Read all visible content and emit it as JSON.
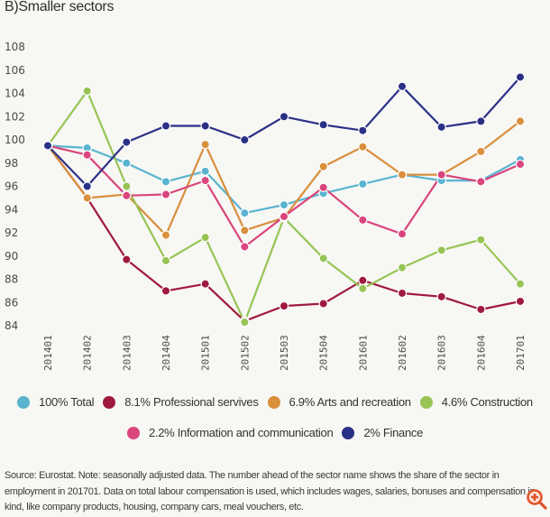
{
  "page": {
    "title": "B)Smaller sectors",
    "source_note": "Source: Eurostat. Note: seasonally adjusted data. The number ahead of the sector name shows the share of the sector in employment in 201701.     Data on total labour compensation is used, which includes wages, salaries, bonuses and compensation in kind, like company products, housing, company cars, meal vouchers, etc.",
    "zoom_icon": "zoom-in-icon"
  },
  "chart_data": {
    "type": "line",
    "title": "B)Smaller sectors",
    "xlabel": "",
    "ylabel": "",
    "categories": [
      "201401",
      "201402",
      "201403",
      "201404",
      "201501",
      "201502",
      "201503",
      "201504",
      "201601",
      "201602",
      "201603",
      "201604",
      "201701"
    ],
    "ylim": [
      84,
      108
    ],
    "yticks": [
      84,
      86,
      88,
      90,
      92,
      94,
      96,
      98,
      100,
      102,
      104,
      106,
      108
    ],
    "grid": false,
    "legend_position": "bottom",
    "series": [
      {
        "name": "100% Total",
        "color": "#5ab4d0",
        "values": [
          99.5,
          99.3,
          98.0,
          96.4,
          97.3,
          93.7,
          94.4,
          95.4,
          96.2,
          97.0,
          96.5,
          96.5,
          98.3
        ]
      },
      {
        "name": "8.1% Professional servives",
        "color": "#a01a3e",
        "values": [
          99.5,
          95.0,
          89.7,
          87.0,
          87.6,
          84.4,
          85.7,
          85.9,
          87.9,
          86.8,
          86.5,
          85.4,
          86.1
        ]
      },
      {
        "name": "6.9% Arts and recreation",
        "color": "#d98f3c",
        "values": [
          99.5,
          95.0,
          95.3,
          91.8,
          99.6,
          92.2,
          93.3,
          97.7,
          99.4,
          97.0,
          97.0,
          99.0,
          101.6
        ]
      },
      {
        "name": "4.6% Construction",
        "color": "#98c455",
        "values": [
          99.5,
          104.2,
          96.0,
          89.6,
          91.6,
          84.3,
          93.3,
          89.8,
          87.2,
          89.0,
          90.5,
          91.4,
          87.6
        ]
      },
      {
        "name": "2.2% Information and communication",
        "color": "#d9457d",
        "values": [
          99.5,
          98.7,
          95.2,
          95.3,
          96.5,
          90.8,
          93.4,
          95.9,
          93.1,
          91.9,
          97.0,
          96.4,
          97.9
        ]
      },
      {
        "name": "2% Finance",
        "color": "#2b3186",
        "values": [
          99.5,
          96.0,
          99.8,
          101.2,
          101.2,
          100.0,
          102.0,
          101.3,
          100.8,
          104.6,
          101.1,
          101.6,
          105.4
        ]
      }
    ]
  }
}
